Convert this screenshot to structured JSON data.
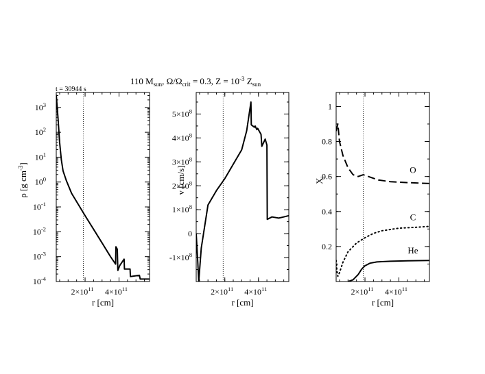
{
  "figure": {
    "title_parts": {
      "mass": "110 M",
      "mass_sub": "sun",
      "omega": ", Ω/Ω",
      "omega_sub": "crit",
      "omega_val": " = 0.3, Z = 10",
      "z_sup": "-3",
      "z_tail": " Z",
      "z_sub": "sun"
    },
    "time_label": "t = 30944 s"
  },
  "chart_data": [
    {
      "type": "line",
      "panel": "density",
      "ylabel": "ρ [g cm",
      "ylabel_sup": "-3",
      "ylabel_tail": "]",
      "xlabel": "r [cm]",
      "yscale": "log",
      "xlim": [
        30000000000.0,
        580000000000.0
      ],
      "ylim_exp": [
        -4,
        3.6
      ],
      "xticks": [
        {
          "value": 200000000000.0,
          "label": "2×10",
          "sup": "11"
        },
        {
          "value": 400000000000.0,
          "label": "4×10",
          "sup": "11"
        }
      ],
      "yticks": [
        {
          "exp": 3,
          "label": "10",
          "sup": "3"
        },
        {
          "exp": 2,
          "label": "10",
          "sup": "2"
        },
        {
          "exp": 1,
          "label": "10",
          "sup": "1"
        },
        {
          "exp": 0,
          "label": "10",
          "sup": "0"
        },
        {
          "exp": -1,
          "label": "10",
          "sup": "-1"
        },
        {
          "exp": -2,
          "label": "10",
          "sup": "-2"
        },
        {
          "exp": -3,
          "label": "10",
          "sup": "-3"
        },
        {
          "exp": -4,
          "label": "10",
          "sup": "-4"
        }
      ],
      "dotted_x": 190000000000.0,
      "series": [
        {
          "name": "density",
          "style": "solid",
          "x": [
            30000000000.0,
            40000000000.0,
            50000000000.0,
            60000000000.0,
            70000000000.0,
            90000000000.0,
            120000000000.0,
            160000000000.0,
            200000000000.0,
            250000000000.0,
            300000000000.0,
            350000000000.0,
            380000000000.0,
            382000000000.0,
            390000000000.0,
            393000000000.0,
            405000000000.0,
            430000000000.0,
            432000000000.0,
            465000000000.0,
            467000000000.0,
            520000000000.0,
            525000000000.0,
            580000000000.0
          ],
          "y": [
            3.5,
            2.6,
            1.6,
            0.9,
            0.45,
            0.05,
            -0.45,
            -0.9,
            -1.35,
            -1.9,
            -2.45,
            -3.0,
            -3.3,
            -2.6,
            -2.7,
            -3.55,
            -3.35,
            -3.1,
            -3.5,
            -3.5,
            -3.8,
            -3.75,
            -3.9,
            -3.9
          ]
        }
      ]
    },
    {
      "type": "line",
      "panel": "velocity",
      "ylabel": "v [cm/s]",
      "xlabel": "r [cm]",
      "xlim": [
        30000000000.0,
        580000000000.0
      ],
      "ylim": [
        -200000000.0,
        590000000.0
      ],
      "xticks": [
        {
          "value": 200000000000.0,
          "label": "2×10",
          "sup": "11"
        },
        {
          "value": 400000000000.0,
          "label": "4×10",
          "sup": "11"
        }
      ],
      "yticks": [
        {
          "value": 500000000.0,
          "label": "5×10",
          "sup": "8"
        },
        {
          "value": 400000000.0,
          "label": "4×10",
          "sup": "8"
        },
        {
          "value": 300000000.0,
          "label": "3×10",
          "sup": "8"
        },
        {
          "value": 200000000.0,
          "label": "2×10",
          "sup": "8"
        },
        {
          "value": 100000000.0,
          "label": "1×10",
          "sup": "8"
        },
        {
          "value": 0,
          "label": "0",
          "sup": ""
        },
        {
          "value": -100000000.0,
          "label": "-1×10",
          "sup": "8"
        }
      ],
      "dotted_x": 190000000000.0,
      "series": [
        {
          "name": "velocity",
          "style": "solid",
          "x": [
            30000000000.0,
            40000000000.0,
            45000000000.0,
            60000000000.0,
            100000000000.0,
            150000000000.0,
            200000000000.0,
            250000000000.0,
            300000000000.0,
            330000000000.0,
            355000000000.0,
            357000000000.0,
            375000000000.0,
            380000000000.0,
            390000000000.0,
            395000000000.0,
            415000000000.0,
            420000000000.0,
            440000000000.0,
            442000000000.0,
            450000000000.0,
            452000000000.0,
            480000000000.0,
            520000000000.0,
            550000000000.0,
            580000000000.0
          ],
          "y": [
            0,
            -130000000.0,
            -200000000.0,
            -60000000.0,
            120000000.0,
            180000000.0,
            230000000.0,
            290000000.0,
            350000000.0,
            430000000.0,
            550000000.0,
            455000000.0,
            445000000.0,
            450000000.0,
            435000000.0,
            440000000.0,
            415000000.0,
            365000000.0,
            395000000.0,
            390000000.0,
            370000000.0,
            60000000.0,
            70000000.0,
            65000000.0,
            70000000.0,
            75000000.0
          ]
        }
      ]
    },
    {
      "type": "line",
      "panel": "abundances",
      "ylabel": "X",
      "ylabel_sub": "i",
      "xlabel": "r [cm]",
      "xlim": [
        30000000000.0,
        580000000000.0
      ],
      "ylim": [
        0.0,
        1.08
      ],
      "xticks": [
        {
          "value": 200000000000.0,
          "label": "2×10",
          "sup": "11"
        },
        {
          "value": 400000000000.0,
          "label": "4×10",
          "sup": "11"
        }
      ],
      "yticks": [
        {
          "value": 1.0,
          "label": "1"
        },
        {
          "value": 0.8,
          "label": "0.8"
        },
        {
          "value": 0.6,
          "label": "0.6"
        },
        {
          "value": 0.4,
          "label": "0.4"
        },
        {
          "value": 0.2,
          "label": "0.2"
        }
      ],
      "dotted_x": 190000000000.0,
      "series": [
        {
          "name": "O",
          "style": "dashed",
          "x": [
            30000000000.0,
            40000000000.0,
            50000000000.0,
            70000000000.0,
            100000000000.0,
            130000000000.0,
            160000000000.0,
            190000000000.0,
            220000000000.0,
            280000000000.0,
            350000000000.0,
            450000000000.0,
            580000000000.0
          ],
          "y": [
            0.86,
            0.9,
            0.8,
            0.72,
            0.65,
            0.61,
            0.6,
            0.61,
            0.6,
            0.58,
            0.57,
            0.565,
            0.56
          ]
        },
        {
          "name": "C",
          "style": "dotted",
          "x": [
            30000000000.0,
            35000000000.0,
            40000000000.0,
            50000000000.0,
            70000000000.0,
            100000000000.0,
            150000000000.0,
            200000000000.0,
            250000000000.0,
            300000000000.0,
            400000000000.0,
            500000000000.0,
            580000000000.0
          ],
          "y": [
            0.12,
            0.06,
            0.03,
            0.05,
            0.11,
            0.17,
            0.22,
            0.25,
            0.275,
            0.29,
            0.305,
            0.31,
            0.315
          ]
        },
        {
          "name": "He",
          "style": "solid",
          "x": [
            100000000000.0,
            130000000000.0,
            160000000000.0,
            180000000000.0,
            200000000000.0,
            230000000000.0,
            270000000000.0,
            350000000000.0,
            450000000000.0,
            580000000000.0
          ],
          "y": [
            0.0,
            0.01,
            0.04,
            0.07,
            0.09,
            0.105,
            0.112,
            0.116,
            0.118,
            0.12
          ]
        }
      ],
      "labels": [
        "O",
        "C",
        "He"
      ]
    }
  ]
}
